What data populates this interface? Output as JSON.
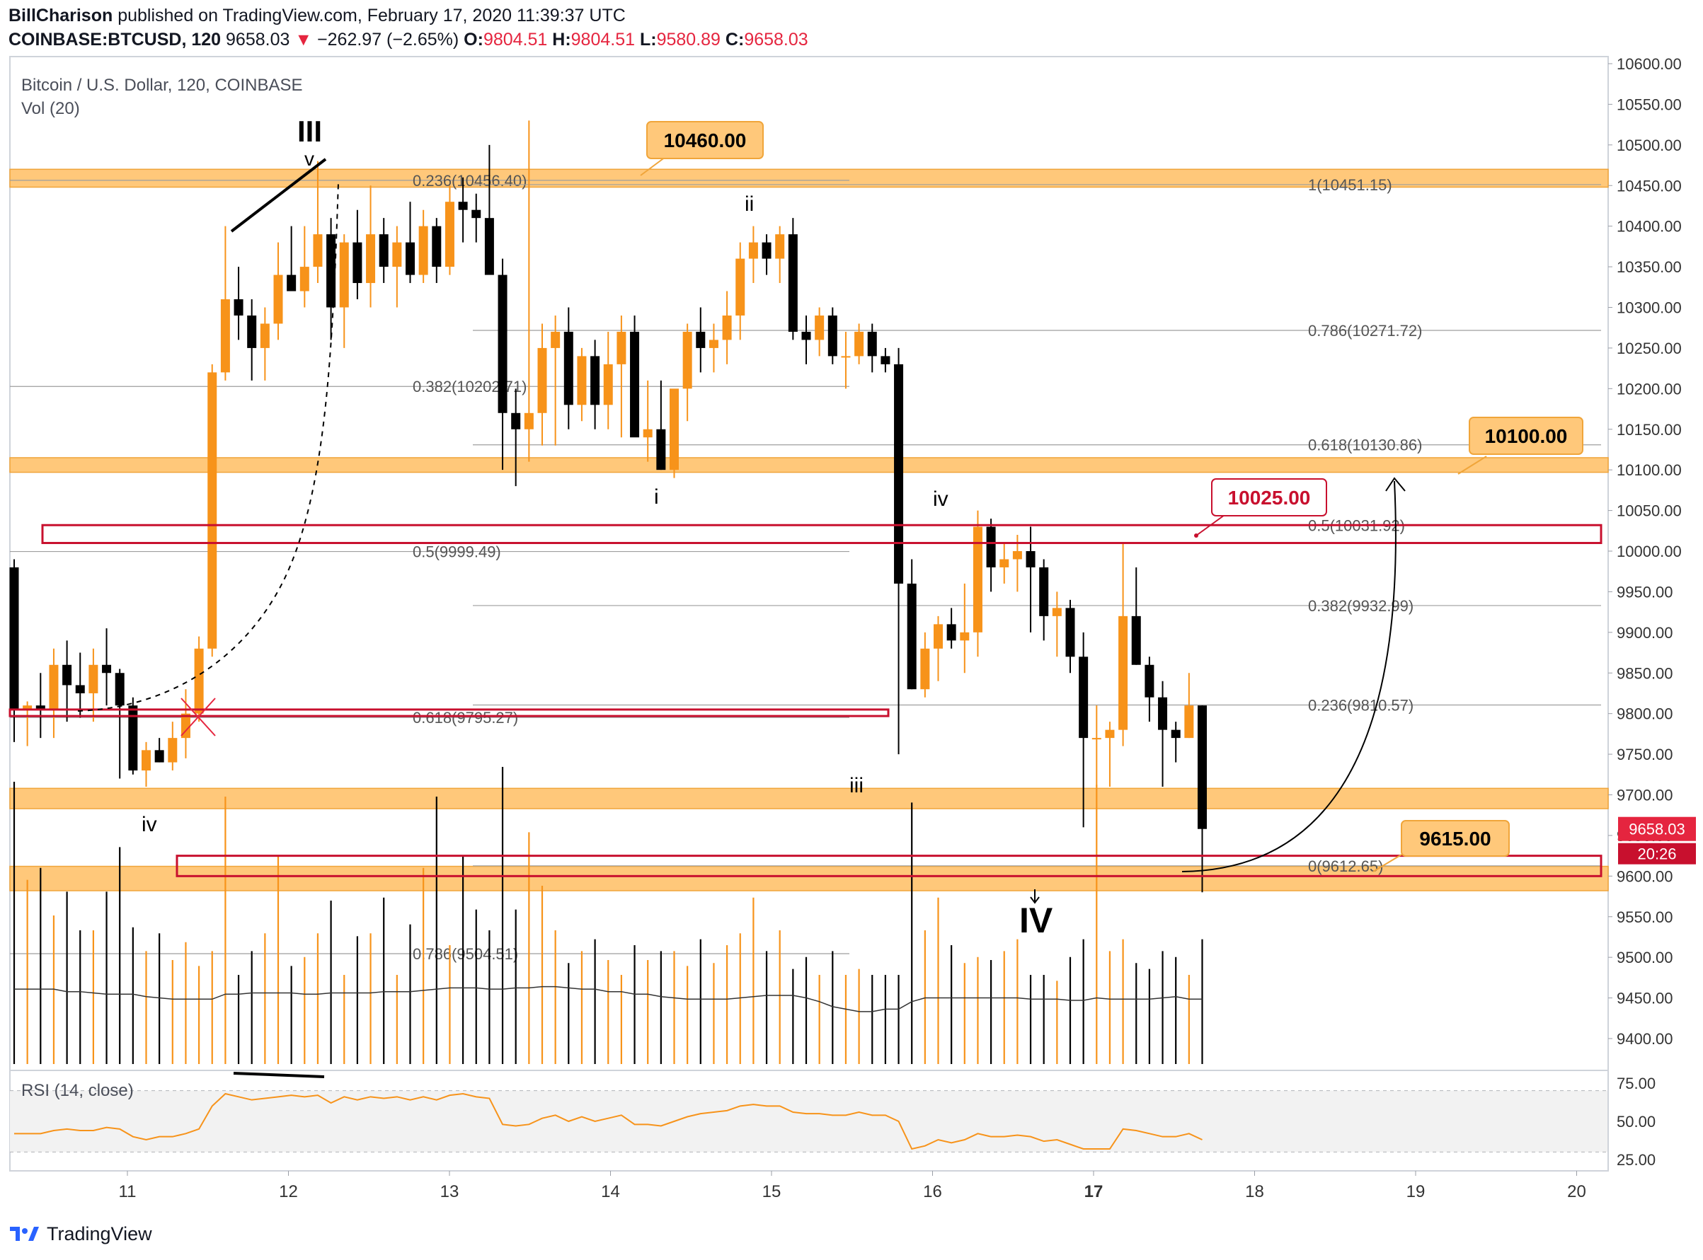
{
  "header": {
    "author": "BillCharison",
    "published": "published on TradingView.com, February 17, 2020 11:39:37 UTC",
    "symbol": "COINBASE:BTCUSD, 120",
    "last": "9658.03",
    "down_arrow": "▼",
    "change": "−262.97 (−2.65%)",
    "o_label": "O:",
    "o": "9804.51",
    "h_label": "H:",
    "h": "9804.51",
    "l_label": "L:",
    "l": "9580.89",
    "c_label": "C:",
    "c": "9658.03"
  },
  "colors": {
    "up": "#f7931a",
    "down": "#000000",
    "zone": "#ffc87a",
    "zone_border": "#f0a53a",
    "red_box": "#c8102e",
    "fib": "#9e9e9e",
    "volma": "#333333",
    "rsi": "#f7931a",
    "price_tag": "#e5253f"
  },
  "footer": {
    "brand": "TradingView",
    "logo_icon": "tradingview-logo-icon"
  },
  "chart_data": {
    "type": "candlestick",
    "title": "Bitcoin / U.S. Dollar, 120, COINBASE",
    "volume_label": "Vol (20)",
    "rsi_label": "RSI (14, close)",
    "x_ticks": [
      "11",
      "12",
      "13",
      "14",
      "15",
      "16",
      "17",
      "18",
      "19",
      "20"
    ],
    "x_bold_tick": "17",
    "y_range": [
      9380,
      10610
    ],
    "y_ticks": [
      "10600.00",
      "10550.00",
      "10500.00",
      "10450.00",
      "10400.00",
      "10350.00",
      "10300.00",
      "10250.00",
      "10200.00",
      "10150.00",
      "10100.00",
      "10050.00",
      "10000.00",
      "9950.00",
      "9900.00",
      "9850.00",
      "9800.00",
      "9750.00",
      "9700.00",
      "9650.00",
      "9600.00",
      "9550.00",
      "9500.00",
      "9450.00",
      "9400.00"
    ],
    "rsi_range": [
      25,
      75
    ],
    "rsi_ticks": [
      "75.00",
      "50.00",
      "25.00"
    ],
    "last_price": "9658.03",
    "countdown": "20:26",
    "candles": [
      [
        9980,
        9990,
        9765,
        9805
      ],
      [
        9805,
        9815,
        9760,
        9810
      ],
      [
        9810,
        9850,
        9770,
        9805
      ],
      [
        9805,
        9880,
        9770,
        9860
      ],
      [
        9860,
        9890,
        9790,
        9835
      ],
      [
        9835,
        9875,
        9795,
        9825
      ],
      [
        9825,
        9880,
        9790,
        9860
      ],
      [
        9860,
        9905,
        9810,
        9850
      ],
      [
        9850,
        9855,
        9720,
        9810
      ],
      [
        9810,
        9820,
        9725,
        9730
      ],
      [
        9730,
        9765,
        9710,
        9755
      ],
      [
        9755,
        9770,
        9740,
        9740
      ],
      [
        9740,
        9790,
        9730,
        9770
      ],
      [
        9770,
        9830,
        9745,
        9800
      ],
      [
        9800,
        9895,
        9790,
        9880
      ],
      [
        9880,
        10230,
        9870,
        10220
      ],
      [
        10220,
        10400,
        10210,
        10310
      ],
      [
        10310,
        10350,
        10260,
        10290
      ],
      [
        10290,
        10310,
        10210,
        10250
      ],
      [
        10250,
        10300,
        10210,
        10280
      ],
      [
        10280,
        10380,
        10260,
        10340
      ],
      [
        10340,
        10400,
        10320,
        10320
      ],
      [
        10320,
        10400,
        10300,
        10350
      ],
      [
        10350,
        10480,
        10330,
        10390
      ],
      [
        10390,
        10410,
        10260,
        10300
      ],
      [
        10300,
        10390,
        10250,
        10380
      ],
      [
        10380,
        10420,
        10310,
        10330
      ],
      [
        10330,
        10450,
        10300,
        10390
      ],
      [
        10390,
        10410,
        10330,
        10350
      ],
      [
        10350,
        10400,
        10300,
        10380
      ],
      [
        10380,
        10430,
        10330,
        10340
      ],
      [
        10340,
        10420,
        10330,
        10400
      ],
      [
        10400,
        10410,
        10330,
        10350
      ],
      [
        10350,
        10450,
        10340,
        10430
      ],
      [
        10430,
        10460,
        10380,
        10420
      ],
      [
        10420,
        10440,
        10380,
        10410
      ],
      [
        10410,
        10500,
        10350,
        10340
      ],
      [
        10340,
        10360,
        10100,
        10170
      ],
      [
        10170,
        10200,
        10080,
        10150
      ],
      [
        10150,
        10530,
        10110,
        10170
      ],
      [
        10170,
        10280,
        10130,
        10250
      ],
      [
        10250,
        10290,
        10130,
        10270
      ],
      [
        10270,
        10300,
        10150,
        10180
      ],
      [
        10180,
        10250,
        10160,
        10240
      ],
      [
        10240,
        10260,
        10150,
        10180
      ],
      [
        10180,
        10270,
        10150,
        10230
      ],
      [
        10230,
        10290,
        10140,
        10270
      ],
      [
        10270,
        10290,
        10150,
        10140
      ],
      [
        10140,
        10210,
        10110,
        10150
      ],
      [
        10150,
        10210,
        10100,
        10100
      ],
      [
        10100,
        10190,
        10090,
        10200
      ],
      [
        10200,
        10280,
        10160,
        10270
      ],
      [
        10270,
        10300,
        10220,
        10250
      ],
      [
        10250,
        10280,
        10220,
        10260
      ],
      [
        10260,
        10320,
        10230,
        10290
      ],
      [
        10290,
        10380,
        10260,
        10360
      ],
      [
        10360,
        10400,
        10330,
        10380
      ],
      [
        10380,
        10390,
        10340,
        10360
      ],
      [
        10360,
        10400,
        10330,
        10390
      ],
      [
        10390,
        10410,
        10260,
        10270
      ],
      [
        10270,
        10290,
        10230,
        10260
      ],
      [
        10260,
        10300,
        10240,
        10290
      ],
      [
        10290,
        10300,
        10230,
        10240
      ],
      [
        10240,
        10270,
        10200,
        10240
      ],
      [
        10240,
        10280,
        10230,
        10270
      ],
      [
        10270,
        10280,
        10220,
        10240
      ],
      [
        10240,
        10250,
        10220,
        10230
      ],
      [
        10230,
        10250,
        9750,
        9960
      ],
      [
        9960,
        9990,
        9830,
        9830
      ],
      [
        9830,
        9900,
        9820,
        9880
      ],
      [
        9880,
        9920,
        9840,
        9910
      ],
      [
        9910,
        9930,
        9880,
        9890
      ],
      [
        9890,
        9960,
        9850,
        9900
      ],
      [
        9900,
        10050,
        9870,
        10030
      ],
      [
        10030,
        10040,
        9950,
        9980
      ],
      [
        9980,
        10010,
        9960,
        9990
      ],
      [
        9990,
        10020,
        9950,
        10000
      ],
      [
        10000,
        10030,
        9900,
        9980
      ],
      [
        9980,
        9990,
        9890,
        9920
      ],
      [
        9920,
        9950,
        9870,
        9930
      ],
      [
        9930,
        9940,
        9850,
        9870
      ],
      [
        9870,
        9900,
        9660,
        9770
      ],
      [
        9770,
        9810,
        9710,
        9770
      ],
      [
        9770,
        9790,
        9710,
        9780
      ],
      [
        9780,
        10010,
        9760,
        9920
      ],
      [
        9920,
        9980,
        9860,
        9860
      ],
      [
        9860,
        9870,
        9790,
        9820
      ],
      [
        9820,
        9840,
        9710,
        9780
      ],
      [
        9780,
        9790,
        9740,
        9770
      ],
      [
        9770,
        9850,
        9770,
        9810
      ],
      [
        9810,
        9810,
        9580,
        9658
      ]
    ],
    "volume": [
      0.95,
      0.62,
      0.66,
      0.5,
      0.58,
      0.45,
      0.45,
      0.58,
      0.73,
      0.46,
      0.38,
      0.44,
      0.35,
      0.41,
      0.33,
      0.38,
      0.9,
      0.3,
      0.38,
      0.44,
      0.7,
      0.33,
      0.36,
      0.44,
      0.55,
      0.3,
      0.43,
      0.44,
      0.56,
      0.3,
      0.47,
      0.66,
      0.9,
      0.4,
      0.7,
      0.52,
      0.45,
      1.0,
      0.52,
      0.78,
      0.6,
      0.45,
      0.34,
      0.38,
      0.42,
      0.35,
      0.3,
      0.4,
      0.35,
      0.38,
      0.38,
      0.33,
      0.42,
      0.34,
      0.4,
      0.44,
      0.56,
      0.38,
      0.45,
      0.32,
      0.36,
      0.3,
      0.38,
      0.3,
      0.32,
      0.3,
      0.3,
      0.3,
      0.88,
      0.45,
      0.56,
      0.4,
      0.34,
      0.36,
      0.35,
      0.38,
      0.42,
      0.3,
      0.3,
      0.28,
      0.36,
      0.42,
      0.94,
      0.38,
      0.42,
      0.34,
      0.32,
      0.38,
      0.36,
      0.3,
      0.42
    ],
    "vol_ma": [
      0.6,
      0.6,
      0.6,
      0.6,
      0.58,
      0.58,
      0.57,
      0.56,
      0.56,
      0.56,
      0.54,
      0.53,
      0.52,
      0.52,
      0.52,
      0.52,
      0.56,
      0.56,
      0.57,
      0.57,
      0.57,
      0.57,
      0.56,
      0.56,
      0.57,
      0.57,
      0.57,
      0.57,
      0.58,
      0.58,
      0.58,
      0.59,
      0.6,
      0.61,
      0.61,
      0.61,
      0.6,
      0.6,
      0.61,
      0.61,
      0.62,
      0.62,
      0.61,
      0.6,
      0.6,
      0.58,
      0.58,
      0.56,
      0.56,
      0.54,
      0.53,
      0.52,
      0.52,
      0.52,
      0.52,
      0.53,
      0.54,
      0.55,
      0.55,
      0.55,
      0.53,
      0.5,
      0.46,
      0.44,
      0.42,
      0.42,
      0.44,
      0.44,
      0.5,
      0.53,
      0.53,
      0.53,
      0.53,
      0.53,
      0.53,
      0.53,
      0.53,
      0.52,
      0.52,
      0.52,
      0.51,
      0.51,
      0.53,
      0.52,
      0.52,
      0.52,
      0.52,
      0.53,
      0.54,
      0.52,
      0.52
    ],
    "rsi": [
      42,
      42,
      42,
      44,
      45,
      44,
      44,
      46,
      45,
      40,
      38,
      40,
      40,
      42,
      45,
      60,
      68,
      66,
      64,
      65,
      66,
      67,
      66,
      67,
      62,
      66,
      64,
      66,
      65,
      66,
      64,
      66,
      64,
      67,
      68,
      66,
      65,
      48,
      47,
      48,
      52,
      54,
      50,
      53,
      50,
      52,
      54,
      48,
      48,
      47,
      50,
      53,
      55,
      56,
      57,
      60,
      61,
      60,
      60,
      56,
      55,
      55,
      54,
      54,
      56,
      54,
      54,
      50,
      32,
      34,
      38,
      36,
      38,
      42,
      40,
      40,
      41,
      40,
      37,
      38,
      35,
      32,
      32,
      32,
      45,
      44,
      42,
      40,
      40,
      42,
      38
    ],
    "fib_left": [
      {
        "label": "0.236(10456.40)",
        "price": 10456.4
      },
      {
        "label": "0.382(10202.71)",
        "price": 10202.71
      },
      {
        "label": "0.5(9999.49)",
        "price": 9999.49
      },
      {
        "label": "0.618(9795.27)",
        "price": 9795.27
      },
      {
        "label": "0.786(9504.51)",
        "price": 9504.51
      }
    ],
    "fib_right": [
      {
        "label": "1(10451.15)",
        "price": 10451.15
      },
      {
        "label": "0.786(10271.72)",
        "price": 10271.72
      },
      {
        "label": "0.618(10130.86)",
        "price": 10130.86
      },
      {
        "label": "0.5(10031.92)",
        "price": 10031.92
      },
      {
        "label": "0.382(9932.99)",
        "price": 9932.99
      },
      {
        "label": "0.236(9810.57)",
        "price": 9810.57
      },
      {
        "label": "0(9612.65)",
        "price": 9612.65
      }
    ],
    "zones": [
      [
        10448,
        10470
      ],
      [
        10097,
        10115
      ],
      [
        9683,
        9708
      ],
      [
        9582,
        9612
      ]
    ],
    "red_boxes": [
      [
        10010,
        10032
      ],
      [
        9797,
        9805
      ],
      [
        9600,
        9625
      ]
    ],
    "price_callouts": [
      {
        "label": "10460.00",
        "kind": "orange"
      },
      {
        "label": "10100.00",
        "kind": "orange"
      },
      {
        "label": "10025.00",
        "kind": "red"
      },
      {
        "label": "9615.00",
        "kind": "orange"
      }
    ],
    "wave_labels": [
      "III",
      "v",
      "iv",
      "i",
      "ii",
      "iii",
      "iv",
      "IV"
    ]
  }
}
